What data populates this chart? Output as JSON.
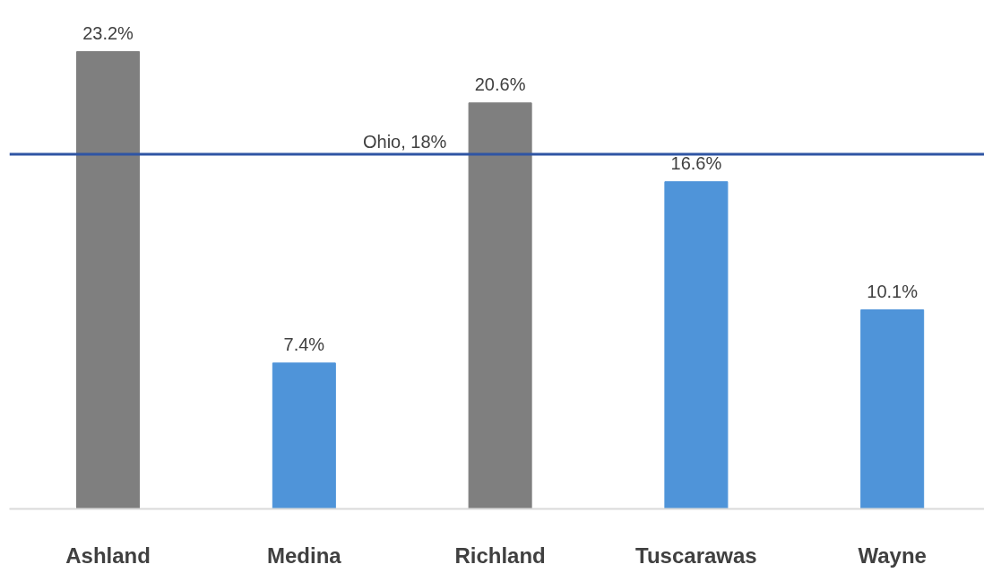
{
  "chart_data": {
    "type": "bar",
    "categories": [
      "Ashland",
      "Medina",
      "Richland",
      "Tuscarawas",
      "Wayne"
    ],
    "values": [
      23.2,
      7.4,
      20.6,
      16.6,
      10.1
    ],
    "colors": [
      "#7f7f7f",
      "#4f94d9",
      "#7f7f7f",
      "#4f94d9",
      "#4f94d9"
    ],
    "value_labels": [
      "23.2%",
      "7.4%",
      "20.6%",
      "16.6%",
      "10.1%"
    ],
    "ref_lines": [
      {
        "axis": "y",
        "value": 18,
        "label": "Ohio, 18%",
        "color": "#2f55a4",
        "line_style": "solid"
      }
    ],
    "grid": false
  }
}
